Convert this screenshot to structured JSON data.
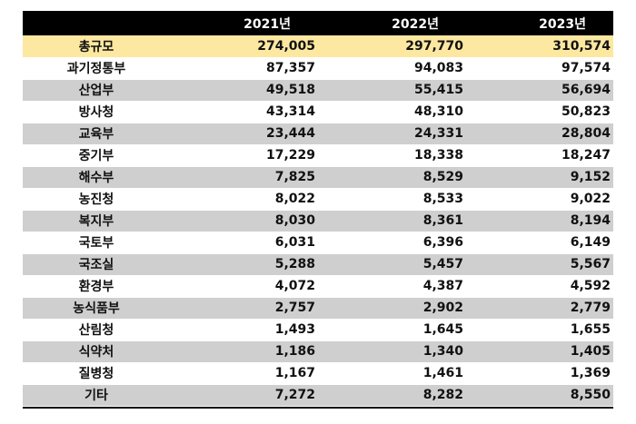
{
  "table": {
    "headers": [
      "",
      "2021년",
      "2022년",
      "2023년"
    ],
    "rows": [
      {
        "label": "총규모",
        "values": [
          "274,005",
          "297,770",
          "310,574"
        ]
      },
      {
        "label": "과기정통부",
        "values": [
          "87,357",
          "94,083",
          "97,574"
        ]
      },
      {
        "label": "산업부",
        "values": [
          "49,518",
          "55,415",
          "56,694"
        ]
      },
      {
        "label": "방사청",
        "values": [
          "43,314",
          "48,310",
          "50,823"
        ]
      },
      {
        "label": "교육부",
        "values": [
          "23,444",
          "24,331",
          "28,804"
        ]
      },
      {
        "label": "중기부",
        "values": [
          "17,229",
          "18,338",
          "18,247"
        ]
      },
      {
        "label": "해수부",
        "values": [
          "7,825",
          "8,529",
          "9,152"
        ]
      },
      {
        "label": "농진청",
        "values": [
          "8,022",
          "8,533",
          "9,022"
        ]
      },
      {
        "label": "복지부",
        "values": [
          "8,030",
          "8,361",
          "8,194"
        ]
      },
      {
        "label": "국토부",
        "values": [
          "6,031",
          "6,396",
          "6,149"
        ]
      },
      {
        "label": "국조실",
        "values": [
          "5,288",
          "5,457",
          "5,567"
        ]
      },
      {
        "label": "환경부",
        "values": [
          "4,072",
          "4,387",
          "4,592"
        ]
      },
      {
        "label": "농식품부",
        "values": [
          "2,757",
          "2,902",
          "2,779"
        ]
      },
      {
        "label": "산림청",
        "values": [
          "1,493",
          "1,645",
          "1,655"
        ]
      },
      {
        "label": "식약처",
        "values": [
          "1,186",
          "1,340",
          "1,405"
        ]
      },
      {
        "label": "질병청",
        "values": [
          "1,167",
          "1,461",
          "1,369"
        ]
      },
      {
        "label": "기타",
        "values": [
          "7,272",
          "8,282",
          "8,550"
        ]
      }
    ]
  },
  "colors": {
    "header_bg": "#000000",
    "header_text": "#ffffff",
    "total_row_bg": "#fce8a0",
    "stripe_gray": "#cfcfcf",
    "stripe_white": "#ffffff"
  }
}
